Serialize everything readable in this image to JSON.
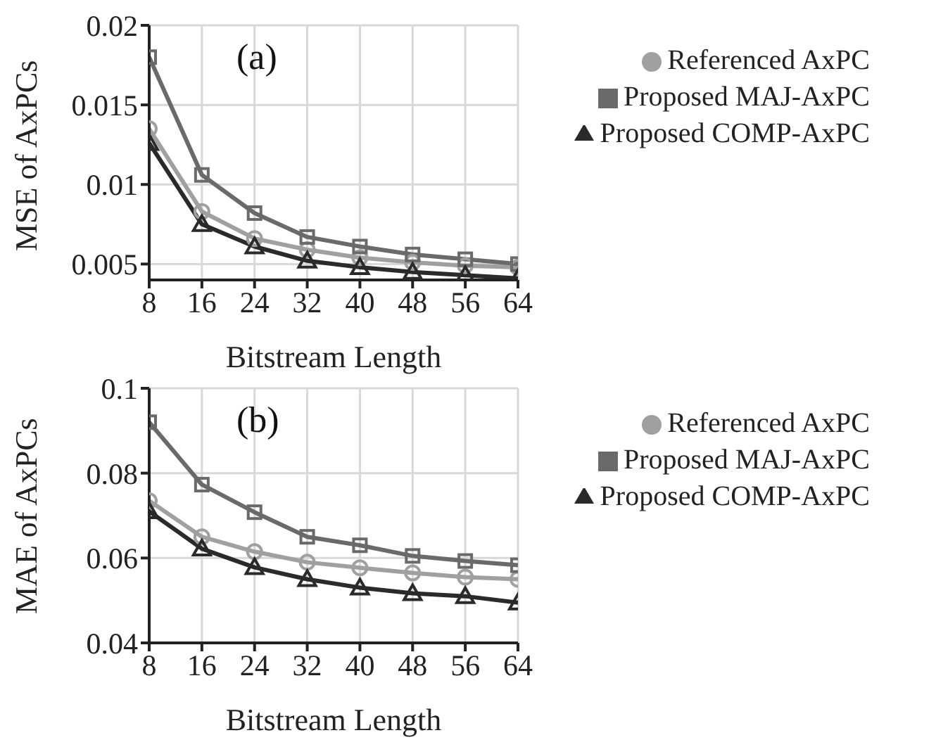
{
  "chart_data": [
    {
      "type": "line",
      "xlabel": "Bitstream Length",
      "ylabel": "MSE of AxPCs",
      "annotations": [
        "(a)"
      ],
      "x": [
        8,
        16,
        24,
        32,
        40,
        48,
        56,
        64
      ],
      "xlim": [
        8,
        64
      ],
      "xticks": [
        8,
        16,
        24,
        32,
        40,
        48,
        56,
        64
      ],
      "ylim": [
        0.004,
        0.02
      ],
      "yticks": [
        0.005,
        0.01,
        0.015,
        0.02
      ],
      "grid": true,
      "legend": "top right",
      "line_style": "solid",
      "series": [
        {
          "name": "Referenced AxPC",
          "color": "#a0a0a0",
          "marker": "circle",
          "values": [
            0.0135,
            0.0083,
            0.0066,
            0.0059,
            0.0054,
            0.0051,
            0.0049,
            0.0048
          ]
        },
        {
          "name": "Proposed MAJ-AxPC",
          "color": "#6a6a6a",
          "marker": "square",
          "values": [
            0.018,
            0.0106,
            0.0082,
            0.0067,
            0.0061,
            0.0056,
            0.0053,
            0.005
          ]
        },
        {
          "name": "Proposed COMP-AxPC",
          "color": "#2a2a2a",
          "marker": "triangle",
          "values": [
            0.0126,
            0.0075,
            0.0061,
            0.0052,
            0.0048,
            0.0045,
            0.0043,
            0.0041
          ]
        }
      ]
    },
    {
      "type": "line",
      "xlabel": "Bitstream Length",
      "ylabel": "MAE of AxPCs",
      "annotations": [
        "(b)"
      ],
      "x": [
        8,
        16,
        24,
        32,
        40,
        48,
        56,
        64
      ],
      "xlim": [
        8,
        64
      ],
      "xticks": [
        8,
        16,
        24,
        32,
        40,
        48,
        56,
        64
      ],
      "ylim": [
        0.04,
        0.1
      ],
      "yticks": [
        0.04,
        0.06,
        0.08,
        0.1
      ],
      "grid": true,
      "legend": "top right",
      "line_style": "solid",
      "series": [
        {
          "name": "Referenced AxPC",
          "color": "#a0a0a0",
          "marker": "circle",
          "values": [
            0.0735,
            0.065,
            0.0615,
            0.059,
            0.0577,
            0.0565,
            0.0555,
            0.055
          ]
        },
        {
          "name": "Proposed MAJ-AxPC",
          "color": "#6a6a6a",
          "marker": "square",
          "values": [
            0.092,
            0.0773,
            0.0708,
            0.065,
            0.063,
            0.0605,
            0.0593,
            0.0583
          ]
        },
        {
          "name": "Proposed COMP-AxPC",
          "color": "#2a2a2a",
          "marker": "triangle",
          "values": [
            0.071,
            0.0622,
            0.0578,
            0.055,
            0.053,
            0.0517,
            0.051,
            0.0495
          ]
        }
      ]
    }
  ]
}
